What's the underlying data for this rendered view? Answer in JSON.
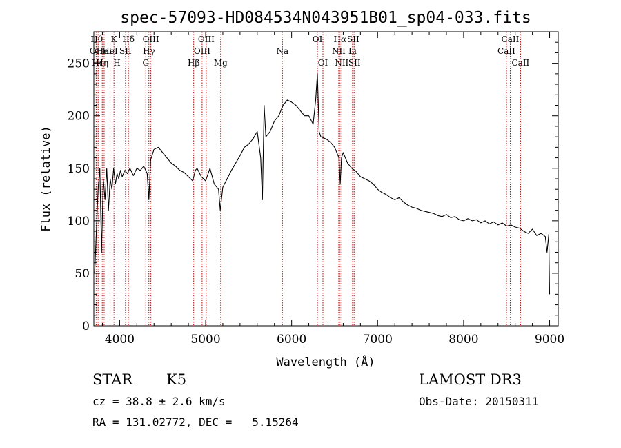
{
  "chart_data": {
    "type": "line",
    "title": "spec-57093-HD084534N043951B01_sp04-033.fits",
    "xlabel": "Wavelength (Å)",
    "ylabel": "Flux (relative)",
    "xlim": [
      3700,
      9100
    ],
    "ylim": [
      0,
      2800
    ],
    "xticks": [
      4000,
      5000,
      6000,
      7000,
      8000,
      9000
    ],
    "xtick_labels": [
      "4000",
      "5000",
      "6000",
      "7000",
      "8000",
      "9000"
    ],
    "yticks": [
      0,
      500,
      1000,
      1500,
      2000,
      2500
    ],
    "ytick_labels": [
      "0",
      "50",
      "100",
      "150",
      "200",
      "250"
    ],
    "grid": false,
    "line_color": "#000000",
    "marker_color": "#cc0000",
    "series": [
      {
        "x": [
          3710,
          3730,
          3750,
          3770,
          3790,
          3810,
          3830,
          3850,
          3870,
          3890,
          3910,
          3930,
          3950,
          3970,
          3990,
          4010,
          4030,
          4060,
          4090,
          4120,
          4160,
          4200,
          4240,
          4280,
          4320,
          4340,
          4360,
          4400,
          4450,
          4500,
          4550,
          4600,
          4650,
          4700,
          4750,
          4800,
          4850,
          4880,
          4900,
          4950,
          5000,
          5050,
          5100,
          5150,
          5170,
          5200,
          5250,
          5300,
          5350,
          5400,
          5450,
          5500,
          5550,
          5600,
          5640,
          5660,
          5680,
          5700,
          5750,
          5800,
          5850,
          5900,
          5950,
          6000,
          6050,
          6100,
          6150,
          6200,
          6250,
          6280,
          6300,
          6320,
          6340,
          6400,
          6450,
          6500,
          6550,
          6565,
          6580,
          6600,
          6650,
          6700,
          6750,
          6800,
          6850,
          6900,
          6950,
          7000,
          7050,
          7100,
          7150,
          7200,
          7250,
          7300,
          7350,
          7400,
          7450,
          7500,
          7550,
          7600,
          7650,
          7700,
          7750,
          7800,
          7850,
          7900,
          7950,
          8000,
          8050,
          8100,
          8150,
          8200,
          8250,
          8300,
          8350,
          8400,
          8450,
          8500,
          8550,
          8600,
          8650,
          8700,
          8750,
          8800,
          8850,
          8900,
          8950,
          8970,
          8990,
          9000
        ],
        "y": [
          500,
          900,
          1300,
          1500,
          700,
          1400,
          1200,
          1500,
          1100,
          1400,
          1300,
          1500,
          1350,
          1450,
          1400,
          1480,
          1420,
          1480,
          1450,
          1500,
          1430,
          1500,
          1480,
          1520,
          1450,
          1200,
          1580,
          1680,
          1700,
          1650,
          1600,
          1550,
          1520,
          1480,
          1460,
          1420,
          1380,
          1480,
          1500,
          1420,
          1380,
          1500,
          1350,
          1300,
          1100,
          1320,
          1400,
          1480,
          1550,
          1620,
          1700,
          1730,
          1780,
          1850,
          1600,
          1200,
          2100,
          1800,
          1850,
          1950,
          2000,
          2100,
          2150,
          2130,
          2100,
          2050,
          2000,
          2000,
          1920,
          2150,
          2400,
          1850,
          1800,
          1780,
          1750,
          1700,
          1600,
          1350,
          1600,
          1650,
          1550,
          1500,
          1470,
          1420,
          1400,
          1380,
          1350,
          1300,
          1270,
          1250,
          1220,
          1200,
          1220,
          1180,
          1150,
          1130,
          1120,
          1100,
          1090,
          1080,
          1070,
          1050,
          1040,
          1060,
          1030,
          1040,
          1010,
          1000,
          1020,
          1000,
          1010,
          980,
          1000,
          970,
          990,
          960,
          980,
          950,
          960,
          940,
          930,
          900,
          880,
          920,
          860,
          880,
          850,
          700,
          870,
          300
        ]
      }
    ],
    "line_markers": [
      {
        "x": 3734,
        "label": "Hθ",
        "row": 0
      },
      {
        "x": 3727,
        "label": "OII",
        "row": 1
      },
      {
        "x": 3750,
        "label": "Hη",
        "row": 2
      },
      {
        "x": 3798,
        "label": "Hη",
        "row": 2
      },
      {
        "x": 3820,
        "label": "HeI",
        "row": 1
      },
      {
        "x": 3889,
        "label": "HeI",
        "row": 1
      },
      {
        "x": 3934,
        "label": "K",
        "row": 0
      },
      {
        "x": 3969,
        "label": "H",
        "row": 2
      },
      {
        "x": 4068,
        "label": "SII",
        "row": 1
      },
      {
        "x": 4102,
        "label": "Hδ",
        "row": 0
      },
      {
        "x": 4304,
        "label": "G",
        "row": 2
      },
      {
        "x": 4340,
        "label": "Hγ",
        "row": 1
      },
      {
        "x": 4363,
        "label": "OIII",
        "row": 0
      },
      {
        "x": 4861,
        "label": "Hβ",
        "row": 2
      },
      {
        "x": 4959,
        "label": "OIII",
        "row": 1
      },
      {
        "x": 5007,
        "label": "OIII",
        "row": 0
      },
      {
        "x": 5175,
        "label": "Mg",
        "row": 2
      },
      {
        "x": 5893,
        "label": "Na",
        "row": 1
      },
      {
        "x": 6300,
        "label": "OI",
        "row": 0
      },
      {
        "x": 6364,
        "label": "OI",
        "row": 2
      },
      {
        "x": 6548,
        "label": "NII",
        "row": 1
      },
      {
        "x": 6563,
        "label": "Hα",
        "row": 0
      },
      {
        "x": 6583,
        "label": "NII",
        "row": 2
      },
      {
        "x": 6708,
        "label": "Li",
        "row": 1
      },
      {
        "x": 6716,
        "label": "SII",
        "row": 0
      },
      {
        "x": 6731,
        "label": "SII",
        "row": 2
      },
      {
        "x": 8498,
        "label": "CaII",
        "row": 1
      },
      {
        "x": 8542,
        "label": "CaII",
        "row": 0
      },
      {
        "x": 8662,
        "label": "CaII",
        "row": 2
      }
    ]
  },
  "info": {
    "class": "STAR",
    "subclass": "K5",
    "survey": "LAMOST DR3",
    "cz": "cz = 38.8 ± 2.6 km/s",
    "obs_date": "Obs-Date: 20150311",
    "coords": "RA = 131.02772, DEC =   5.15264"
  }
}
